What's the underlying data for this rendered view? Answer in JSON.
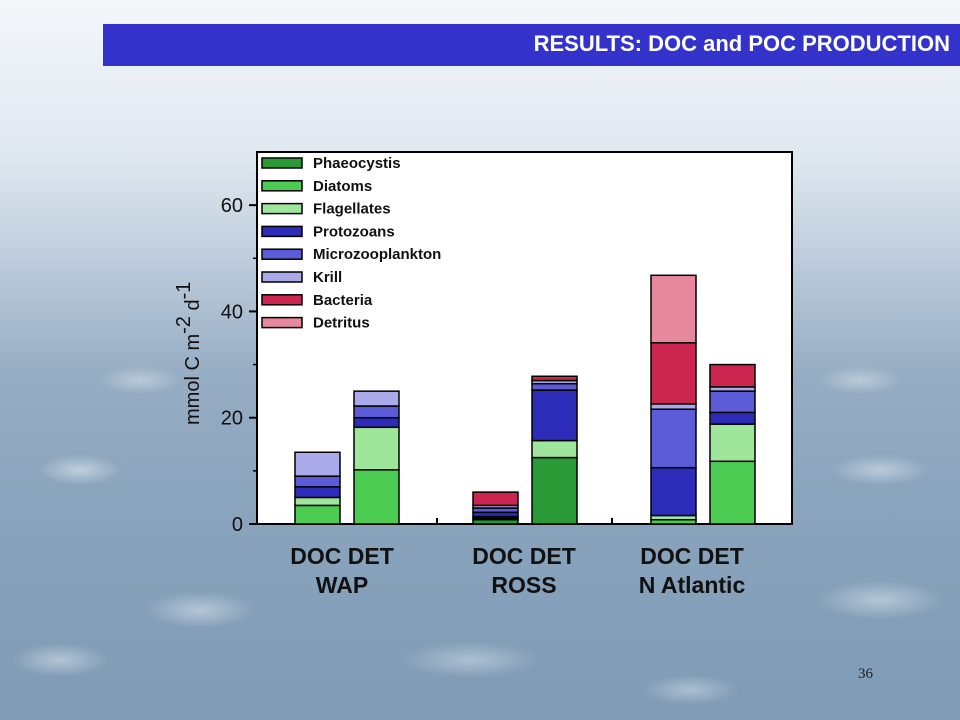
{
  "slide": {
    "title": "RESULTS: DOC and POC PRODUCTION",
    "page_number": "36",
    "banner_color": "#3333cc"
  },
  "chart_data": {
    "type": "bar",
    "stacked": true,
    "ylabel": "mmol C m-2 d-1",
    "ylabel_parts": {
      "base": "mmol C m",
      "exp1": "-2",
      "mid": " d",
      "exp2": "-1"
    },
    "ylim": [
      0,
      70
    ],
    "yticks": [
      0,
      20,
      40,
      60
    ],
    "grid": false,
    "legend_position": "top-left",
    "groups": [
      {
        "lines": [
          "DOC DET",
          "WAP"
        ]
      },
      {
        "lines": [
          "DOC DET",
          "ROSS"
        ]
      },
      {
        "lines": [
          "DOC DET",
          "N Atlantic"
        ]
      }
    ],
    "categories": [
      "WAP DOC",
      "WAP DET",
      "ROSS DOC",
      "ROSS DET",
      "N Atlantic DOC",
      "N Atlantic DET"
    ],
    "series": [
      {
        "name": "Phaeocystis",
        "color": "#2a9a37",
        "values": [
          0,
          0,
          0.8,
          12.5,
          0,
          0
        ]
      },
      {
        "name": "Diatoms",
        "color": "#4ccc52",
        "values": [
          3.5,
          10.2,
          0.3,
          0,
          0.8,
          11.8
        ]
      },
      {
        "name": "Flagellates",
        "color": "#9de69a",
        "values": [
          1.5,
          8.0,
          0.3,
          3.2,
          0.8,
          7.0
        ]
      },
      {
        "name": "Protozoans",
        "color": "#2c2cb8",
        "values": [
          2.0,
          1.8,
          0.8,
          9.5,
          9.0,
          2.2
        ]
      },
      {
        "name": "Microzooplankton",
        "color": "#5c5cd8",
        "values": [
          2.0,
          2.2,
          0.8,
          1.2,
          11.0,
          4.0
        ]
      },
      {
        "name": "Krill",
        "color": "#aaaaea",
        "values": [
          4.5,
          2.8,
          0.5,
          0.6,
          1.0,
          0.8
        ]
      },
      {
        "name": "Bacteria",
        "color": "#cc2650",
        "values": [
          0,
          0,
          2.5,
          0.8,
          11.5,
          4.2
        ]
      },
      {
        "name": "Detritus",
        "color": "#e8889f",
        "values": [
          0,
          0,
          0,
          0,
          12.7,
          0
        ]
      }
    ]
  }
}
